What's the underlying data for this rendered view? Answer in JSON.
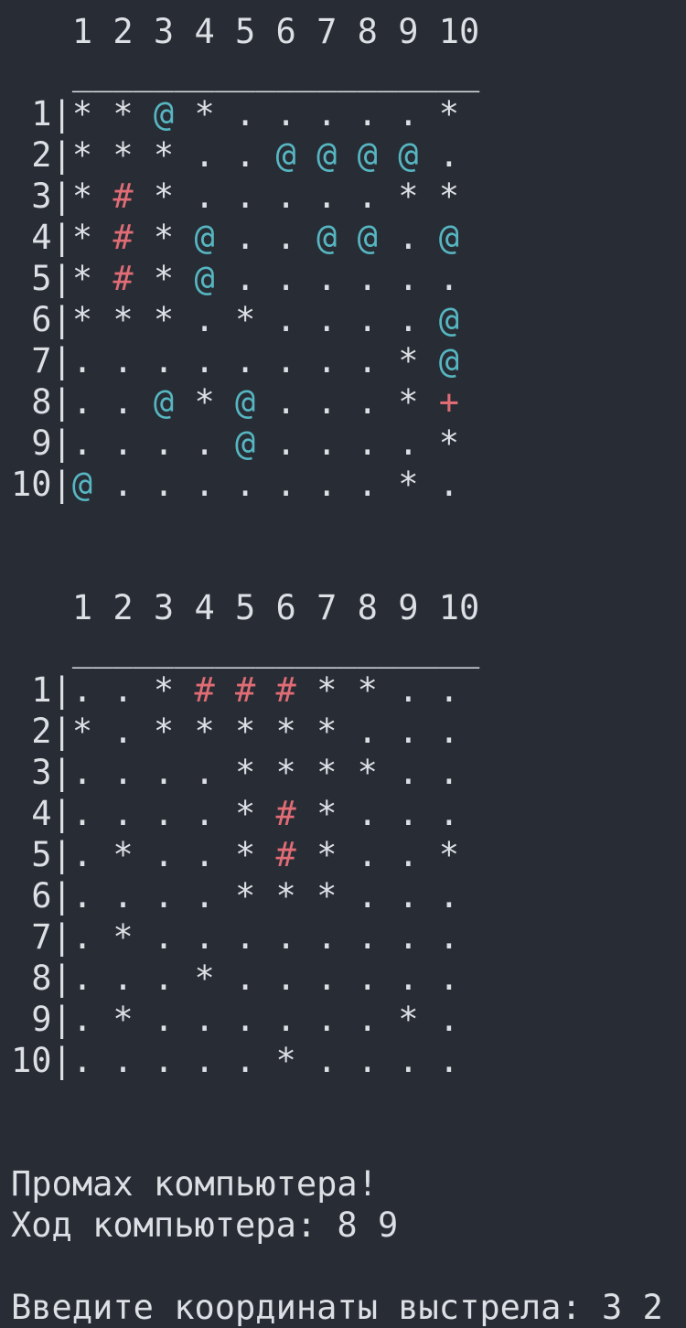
{
  "boards": [
    {
      "columns": [
        "1",
        "2",
        "3",
        "4",
        "5",
        "6",
        "7",
        "8",
        "9",
        "10"
      ],
      "separator": "____________________",
      "border": "|",
      "rows": [
        {
          "label": "1",
          "cells": [
            "*",
            "*",
            "@",
            "*",
            ".",
            ".",
            ".",
            ".",
            ".",
            "*"
          ]
        },
        {
          "label": "2",
          "cells": [
            "*",
            "*",
            "*",
            ".",
            ".",
            "@",
            "@",
            "@",
            "@",
            "."
          ]
        },
        {
          "label": "3",
          "cells": [
            "*",
            "#",
            "*",
            ".",
            ".",
            ".",
            ".",
            ".",
            "*",
            "*"
          ]
        },
        {
          "label": "4",
          "cells": [
            "*",
            "#",
            "*",
            "@",
            ".",
            ".",
            "@",
            "@",
            ".",
            "@"
          ]
        },
        {
          "label": "5",
          "cells": [
            "*",
            "#",
            "*",
            "@",
            ".",
            ".",
            ".",
            ".",
            ".",
            "."
          ]
        },
        {
          "label": "6",
          "cells": [
            "*",
            "*",
            "*",
            ".",
            "*",
            ".",
            ".",
            ".",
            ".",
            "@"
          ]
        },
        {
          "label": "7",
          "cells": [
            ".",
            ".",
            ".",
            ".",
            ".",
            ".",
            ".",
            ".",
            "*",
            "@"
          ]
        },
        {
          "label": "8",
          "cells": [
            ".",
            ".",
            "@",
            "*",
            "@",
            ".",
            ".",
            ".",
            "*",
            "+"
          ]
        },
        {
          "label": "9",
          "cells": [
            ".",
            ".",
            ".",
            ".",
            "@",
            ".",
            ".",
            ".",
            ".",
            "*"
          ]
        },
        {
          "label": "10",
          "cells": [
            "@",
            ".",
            ".",
            ".",
            ".",
            ".",
            ".",
            ".",
            "*",
            "."
          ]
        }
      ]
    },
    {
      "columns": [
        "1",
        "2",
        "3",
        "4",
        "5",
        "6",
        "7",
        "8",
        "9",
        "10"
      ],
      "separator": "____________________",
      "border": "|",
      "rows": [
        {
          "label": "1",
          "cells": [
            ".",
            ".",
            "*",
            "#",
            "#",
            "#",
            "*",
            "*",
            ".",
            "."
          ]
        },
        {
          "label": "2",
          "cells": [
            "*",
            ".",
            "*",
            "*",
            "*",
            "*",
            "*",
            ".",
            ".",
            "."
          ]
        },
        {
          "label": "3",
          "cells": [
            ".",
            ".",
            ".",
            ".",
            "*",
            "*",
            "*",
            "*",
            ".",
            "."
          ]
        },
        {
          "label": "4",
          "cells": [
            ".",
            ".",
            ".",
            ".",
            "*",
            "#",
            "*",
            ".",
            ".",
            "."
          ]
        },
        {
          "label": "5",
          "cells": [
            ".",
            "*",
            ".",
            ".",
            "*",
            "#",
            "*",
            ".",
            ".",
            "*"
          ]
        },
        {
          "label": "6",
          "cells": [
            ".",
            ".",
            ".",
            ".",
            "*",
            "*",
            "*",
            ".",
            ".",
            "."
          ]
        },
        {
          "label": "7",
          "cells": [
            ".",
            "*",
            ".",
            ".",
            ".",
            ".",
            ".",
            ".",
            ".",
            "."
          ]
        },
        {
          "label": "8",
          "cells": [
            ".",
            ".",
            ".",
            "*",
            ".",
            ".",
            ".",
            ".",
            ".",
            "."
          ]
        },
        {
          "label": "9",
          "cells": [
            ".",
            "*",
            ".",
            ".",
            ".",
            ".",
            ".",
            ".",
            "*",
            "."
          ]
        },
        {
          "label": "10",
          "cells": [
            ".",
            ".",
            ".",
            ".",
            ".",
            "*",
            ".",
            ".",
            ".",
            "."
          ]
        }
      ]
    }
  ],
  "messages": [
    "Промах компьютера!",
    "Ход компьютера: 8 9"
  ],
  "prompt": "Введите координаты выстрела: 3 2"
}
